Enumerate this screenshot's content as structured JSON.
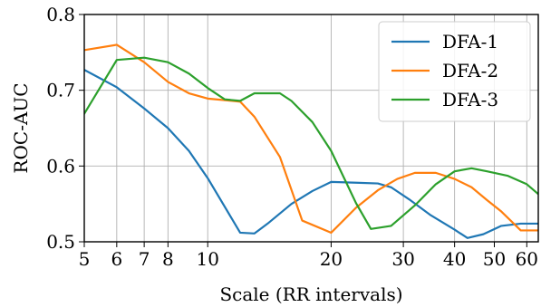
{
  "chart_data": {
    "type": "line",
    "title": "",
    "xlabel": "Scale (RR intervals)",
    "ylabel": "ROC-AUC",
    "x_scale": "log",
    "xlim": [
      5,
      64
    ],
    "ylim": [
      0.5,
      0.8
    ],
    "x_ticks": [
      5,
      6,
      7,
      8,
      10,
      20,
      30,
      40,
      50,
      60
    ],
    "x_tick_labels": [
      "5",
      "6",
      "7",
      "8",
      "10",
      "20",
      "30",
      "40",
      "50",
      "60"
    ],
    "y_ticks": [
      0.5,
      0.6,
      0.7,
      0.8
    ],
    "y_tick_labels": [
      "0.5",
      "0.6",
      "0.7",
      "0.8"
    ],
    "grid": true,
    "legend_position": "top-right",
    "series": [
      {
        "name": "DFA-1",
        "color": "#1f77b4",
        "x": [
          5,
          6,
          7,
          8,
          9,
          10,
          12,
          13,
          14,
          16,
          18,
          20,
          23,
          26,
          28,
          31,
          35,
          40,
          43,
          47,
          52,
          58,
          64
        ],
        "y": [
          0.727,
          0.704,
          0.676,
          0.65,
          0.62,
          0.584,
          0.512,
          0.511,
          0.524,
          0.55,
          0.567,
          0.579,
          0.578,
          0.577,
          0.572,
          0.556,
          0.535,
          0.516,
          0.505,
          0.51,
          0.521,
          0.524,
          0.524
        ]
      },
      {
        "name": "DFA-2",
        "color": "#ff7f0e",
        "x": [
          5,
          6,
          7,
          8,
          9,
          10,
          12,
          13,
          15,
          17,
          20,
          23,
          26,
          29,
          32,
          36,
          40,
          44,
          48,
          52,
          58,
          64
        ],
        "y": [
          0.753,
          0.76,
          0.737,
          0.711,
          0.696,
          0.689,
          0.685,
          0.665,
          0.612,
          0.528,
          0.512,
          0.545,
          0.568,
          0.583,
          0.591,
          0.591,
          0.583,
          0.572,
          0.555,
          0.54,
          0.515,
          0.515
        ]
      },
      {
        "name": "DFA-3",
        "color": "#2ca02c",
        "x": [
          5,
          6,
          7,
          8,
          9,
          10,
          11,
          12,
          13,
          15,
          16,
          18,
          20,
          23,
          25,
          28,
          32,
          36,
          40,
          44,
          48,
          54,
          60,
          64
        ],
        "y": [
          0.669,
          0.74,
          0.743,
          0.737,
          0.722,
          0.703,
          0.688,
          0.686,
          0.696,
          0.696,
          0.686,
          0.658,
          0.62,
          0.551,
          0.517,
          0.521,
          0.548,
          0.576,
          0.593,
          0.597,
          0.593,
          0.587,
          0.576,
          0.563
        ]
      }
    ]
  }
}
